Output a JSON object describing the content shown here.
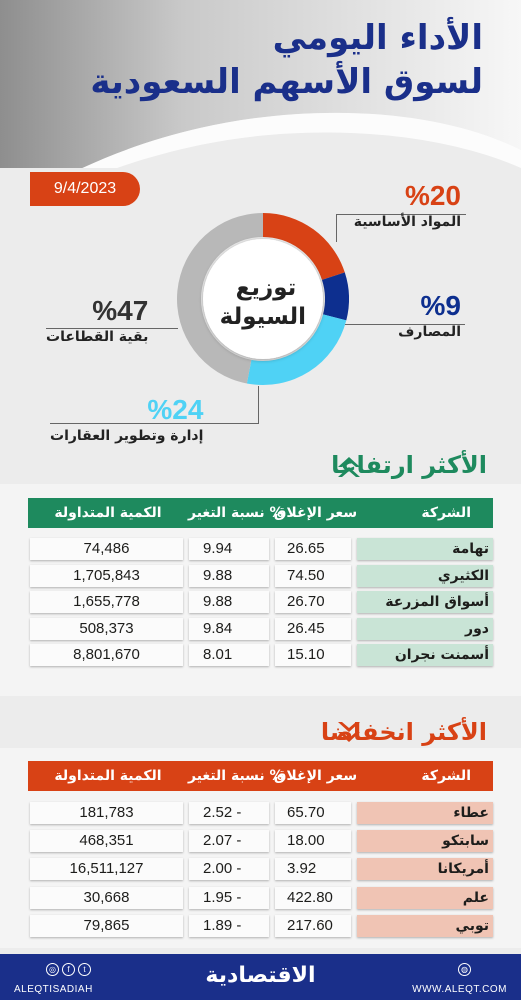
{
  "header": {
    "title_line1": "الأداء اليومي",
    "title_line2": "لسوق الأسهم السعودية",
    "date": "9/4/2023"
  },
  "colors": {
    "brand_blue": "#1a2f8a",
    "orange": "#d84215",
    "navy": "#0d2f8f",
    "cyan": "#4fd2f5",
    "grey": "#b8b8b8",
    "green": "#1e8a5e",
    "mint_cell": "#c9e4d6",
    "pink_cell": "#f0c4b4"
  },
  "donut": {
    "center_line1": "توزيع",
    "center_line2": "السيولة"
  },
  "chart_data": {
    "type": "pie",
    "title": "توزيع السيولة",
    "slices": [
      {
        "label": "المواد الأساسية",
        "value": 20,
        "display": "%20",
        "color": "#d84215"
      },
      {
        "label": "المصارف",
        "value": 9,
        "display": "%9",
        "color": "#0d2f8f"
      },
      {
        "label": "إدارة وتطوير العقارات",
        "value": 24,
        "display": "%24",
        "color": "#4fd2f5"
      },
      {
        "label": "بقية القطاعات",
        "value": 47,
        "display": "%47",
        "color": "#b8b8b8"
      }
    ]
  },
  "gainers": {
    "title": "الأكثر ارتفاعا",
    "headers": {
      "company": "الشركة",
      "close": "سعر الإغلاق",
      "change": "نسبة التغير %",
      "qty": "الكمية المتداولة"
    },
    "rows": [
      {
        "company": "تهامة",
        "close": "26.65",
        "change": "9.94",
        "qty": "74,486"
      },
      {
        "company": "الكثيري",
        "close": "74.50",
        "change": "9.88",
        "qty": "1,705,843"
      },
      {
        "company": "أسواق المزرعة",
        "close": "26.70",
        "change": "9.88",
        "qty": "1,655,778"
      },
      {
        "company": "دور",
        "close": "26.45",
        "change": "9.84",
        "qty": "508,373"
      },
      {
        "company": "أسمنت نجران",
        "close": "15.10",
        "change": "8.01",
        "qty": "8,801,670"
      }
    ]
  },
  "losers": {
    "title": "الأكثر انخفاضا",
    "headers": {
      "company": "الشركة",
      "close": "سعر الإغلاق",
      "change": "نسبة التغير %",
      "qty": "الكمية المتداولة"
    },
    "rows": [
      {
        "company": "عطاء",
        "close": "65.70",
        "change": "2.52 -",
        "qty": "181,783"
      },
      {
        "company": "سابتكو",
        "close": "18.00",
        "change": "2.07 -",
        "qty": "468,351"
      },
      {
        "company": "أمريكانا",
        "close": "3.92",
        "change": "2.00 -",
        "qty": "16,511,127"
      },
      {
        "company": "علم",
        "close": "422.80",
        "change": "1.95 -",
        "qty": "30,668"
      },
      {
        "company": "توبي",
        "close": "217.60",
        "change": "1.89 -",
        "qty": "79,865"
      }
    ]
  },
  "footer": {
    "logo": "الاقتصادية",
    "handle": "ALEQTISADIAH",
    "url": "WWW.ALEQT.COM"
  }
}
